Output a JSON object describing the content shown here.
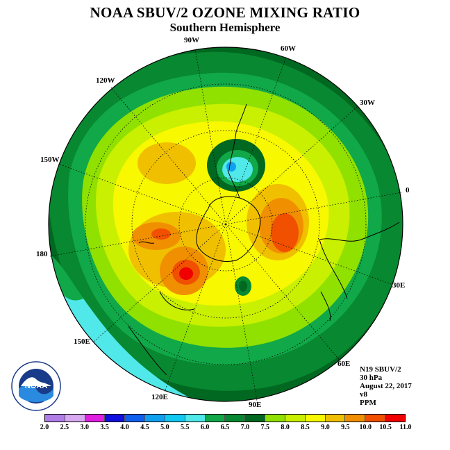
{
  "title": "NOAA SBUV/2 OZONE MIXING RATIO",
  "subtitle": "Southern Hemisphere",
  "longitude_labels": [
    "90W",
    "60W",
    "30W",
    "0",
    "30E",
    "60E",
    "90E",
    "120E",
    "150E",
    "180",
    "150W",
    "120W"
  ],
  "info": {
    "instrument": "N19 SBUV/2",
    "level": "30 hPa",
    "date": "August 22, 2017",
    "version": "v8",
    "units": "PPM"
  },
  "colorbar": {
    "ticks": [
      "2.0",
      "2.5",
      "3.0",
      "3.5",
      "4.0",
      "4.5",
      "5.0",
      "5.5",
      "6.0",
      "6.5",
      "7.0",
      "7.5",
      "8.0",
      "8.5",
      "9.0",
      "9.5",
      "10.0",
      "10.5",
      "11.0"
    ],
    "colors": [
      "#b07ee6",
      "#d8a8f0",
      "#e020e0",
      "#1010e0",
      "#1060f0",
      "#10a0f0",
      "#10c8f0",
      "#50e8e8",
      "#10a848",
      "#088830",
      "#006820",
      "#90e000",
      "#c8f000",
      "#f8f800",
      "#f0c000",
      "#f09000",
      "#f05000",
      "#f00000",
      "#905030"
    ]
  },
  "logo": {
    "text": "NOAA",
    "ring_text": "NATIONAL OCEANIC AND ATMOSPHERIC ADMINISTRATION · U.S. DEPARTMENT OF COMMERCE"
  }
}
